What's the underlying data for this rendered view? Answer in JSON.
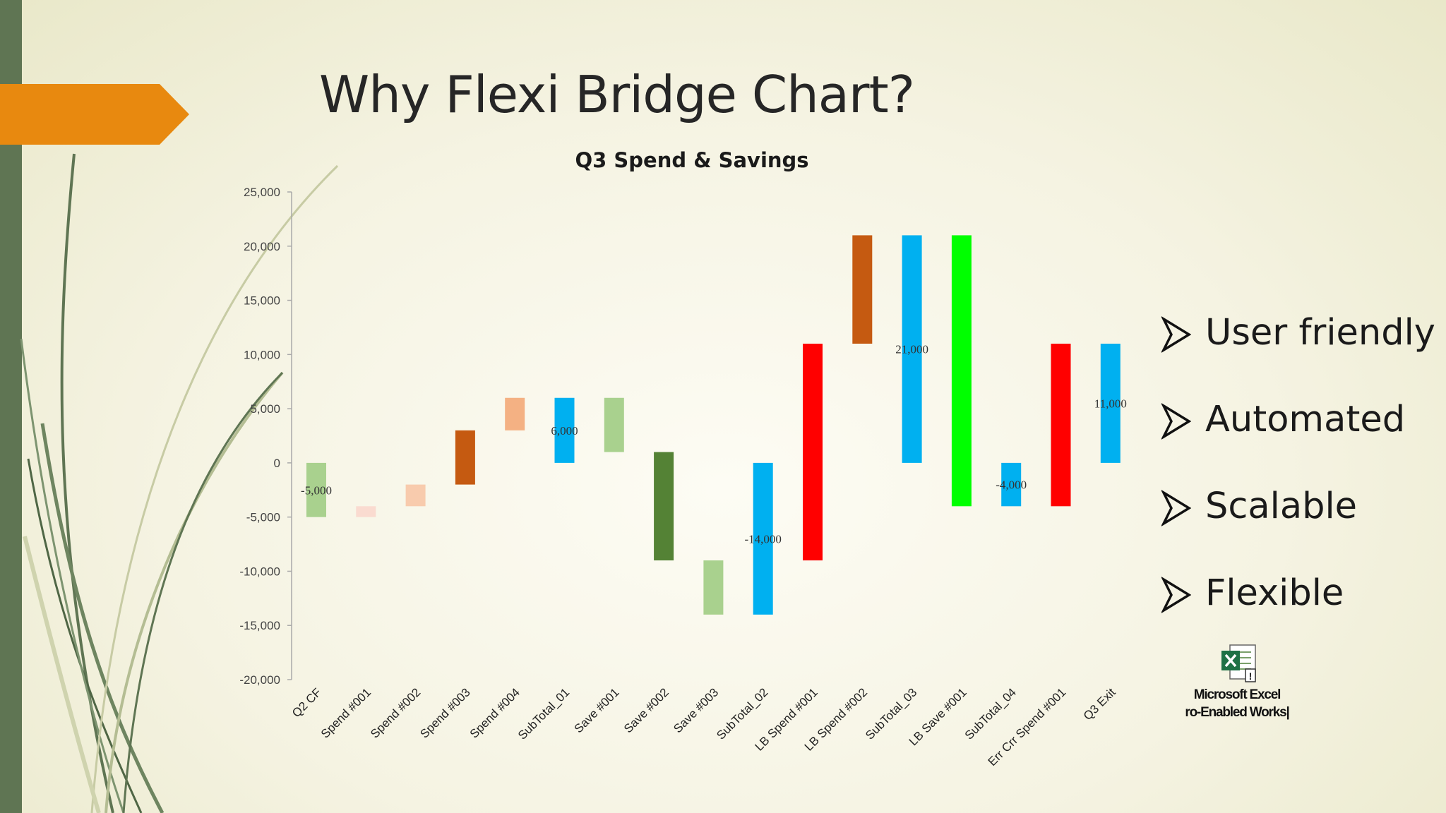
{
  "slide": {
    "title": "Why Flexi Bridge Chart?",
    "bullets": [
      "User friendly",
      "Automated",
      "Scalable",
      "Flexible"
    ],
    "attachment": {
      "icon": "excel-file-icon",
      "label_line1": "Microsoft Excel",
      "label_line2": "ro-Enabled Works|"
    }
  },
  "colors": {
    "accent_orange": "#e8890f",
    "side_bar": "#5f7553",
    "light_green": "#a9d18e",
    "light_red": "#f8cbad",
    "salmon": "#f4b183",
    "brown": "#c55a11",
    "blue": "#00b0f0",
    "dark_green": "#548235",
    "red": "#ff0000",
    "bright_green": "#00ff00"
  },
  "chart_data": {
    "type": "bar",
    "subtype": "floating-waterfall",
    "title": "Q3 Spend & Savings",
    "xlabel": "",
    "ylabel": "",
    "ylim": [
      -20000,
      25000
    ],
    "yticks": [
      "25,000",
      "20,000",
      "15,000",
      "10,000",
      "5,000",
      "0",
      "-5,000",
      "-10,000",
      "-15,000",
      "-20,000"
    ],
    "grid": false,
    "legend": "none",
    "bars": [
      {
        "category": "Q2 CF",
        "low": -5000,
        "high": 0,
        "color": "#a9d18e",
        "label": "-5,000"
      },
      {
        "category": "Spend #001",
        "low": -5000,
        "high": -4000,
        "color": "#fadbd0",
        "label": ""
      },
      {
        "category": "Spend #002",
        "low": -4000,
        "high": -2000,
        "color": "#f8cbad",
        "label": ""
      },
      {
        "category": "Spend #003",
        "low": -2000,
        "high": 3000,
        "color": "#c55a11",
        "label": ""
      },
      {
        "category": "Spend #004",
        "low": 3000,
        "high": 6000,
        "color": "#f4b183",
        "label": ""
      },
      {
        "category": "SubTotal_01",
        "low": 0,
        "high": 6000,
        "color": "#00b0f0",
        "label": "6,000"
      },
      {
        "category": "Save #001",
        "low": 1000,
        "high": 6000,
        "color": "#a9d18e",
        "label": ""
      },
      {
        "category": "Save #002",
        "low": -9000,
        "high": 1000,
        "color": "#548235",
        "label": ""
      },
      {
        "category": "Save #003",
        "low": -14000,
        "high": -9000,
        "color": "#a9d18e",
        "label": ""
      },
      {
        "category": "SubTotal_02",
        "low": -14000,
        "high": 0,
        "color": "#00b0f0",
        "label": "-14,000"
      },
      {
        "category": "LB Spend #001",
        "low": -9000,
        "high": 11000,
        "color": "#ff0000",
        "label": ""
      },
      {
        "category": "LB Spend #002",
        "low": 11000,
        "high": 21000,
        "color": "#c55a11",
        "label": ""
      },
      {
        "category": "SubTotal_03",
        "low": 0,
        "high": 21000,
        "color": "#00b0f0",
        "label": "21,000"
      },
      {
        "category": "LB Save #001",
        "low": -4000,
        "high": 21000,
        "color": "#00ff00",
        "label": ""
      },
      {
        "category": "SubTotal_04",
        "low": -4000,
        "high": 0,
        "color": "#00b0f0",
        "label": "-4,000"
      },
      {
        "category": "Err Crr Spend #001",
        "low": -4000,
        "high": 11000,
        "color": "#ff0000",
        "label": ""
      },
      {
        "category": "Q3 Exit",
        "low": 0,
        "high": 11000,
        "color": "#00b0f0",
        "label": "11,000"
      }
    ]
  }
}
